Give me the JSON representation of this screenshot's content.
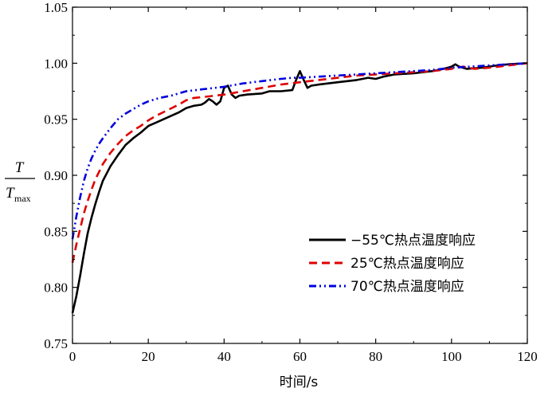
{
  "chart_data": {
    "type": "line",
    "title": "",
    "xlabel": "时间/s",
    "ylabel": {
      "numerator": "T",
      "denominator_main": "T",
      "denominator_sub": "max"
    },
    "xlim": [
      0,
      120
    ],
    "ylim": [
      0.75,
      1.05
    ],
    "x_ticks": [
      "0",
      "20",
      "40",
      "60",
      "80",
      "100",
      "120"
    ],
    "y_ticks": [
      "0.75",
      "0.80",
      "0.85",
      "0.90",
      "0.95",
      "1.00",
      "1.05"
    ],
    "grid": false,
    "legend_position": "lower-right",
    "series": [
      {
        "name": "−55℃热点温度响应",
        "color": "#000000",
        "style": "solid",
        "points": [
          [
            0,
            0.777
          ],
          [
            1,
            0.792
          ],
          [
            2,
            0.81
          ],
          [
            3,
            0.83
          ],
          [
            4,
            0.848
          ],
          [
            5,
            0.862
          ],
          [
            6,
            0.874
          ],
          [
            7,
            0.885
          ],
          [
            8,
            0.895
          ],
          [
            10,
            0.908
          ],
          [
            12,
            0.918
          ],
          [
            14,
            0.927
          ],
          [
            16,
            0.933
          ],
          [
            18,
            0.938
          ],
          [
            20,
            0.944
          ],
          [
            22,
            0.947
          ],
          [
            24,
            0.95
          ],
          [
            26,
            0.953
          ],
          [
            28,
            0.956
          ],
          [
            30,
            0.96
          ],
          [
            32,
            0.962
          ],
          [
            34,
            0.963
          ],
          [
            35,
            0.965
          ],
          [
            36,
            0.968
          ],
          [
            37,
            0.966
          ],
          [
            38,
            0.963
          ],
          [
            39,
            0.966
          ],
          [
            40,
            0.978
          ],
          [
            41,
            0.98
          ],
          [
            42,
            0.972
          ],
          [
            43,
            0.969
          ],
          [
            44,
            0.971
          ],
          [
            46,
            0.972
          ],
          [
            50,
            0.973
          ],
          [
            52,
            0.975
          ],
          [
            55,
            0.975
          ],
          [
            58,
            0.976
          ],
          [
            59,
            0.985
          ],
          [
            60,
            0.993
          ],
          [
            61,
            0.985
          ],
          [
            62,
            0.978
          ],
          [
            63,
            0.98
          ],
          [
            65,
            0.981
          ],
          [
            70,
            0.983
          ],
          [
            75,
            0.985
          ],
          [
            78,
            0.987
          ],
          [
            80,
            0.986
          ],
          [
            82,
            0.988
          ],
          [
            85,
            0.99
          ],
          [
            90,
            0.991
          ],
          [
            95,
            0.993
          ],
          [
            98,
            0.995
          ],
          [
            100,
            0.997
          ],
          [
            101,
            0.999
          ],
          [
            102,
            0.997
          ],
          [
            104,
            0.995
          ],
          [
            108,
            0.996
          ],
          [
            112,
            0.998
          ],
          [
            115,
            0.999
          ],
          [
            120,
            1.0
          ]
        ]
      },
      {
        "name": "25℃热点温度响应",
        "color": "#e00000",
        "style": "dashed",
        "points": [
          [
            0,
            0.822
          ],
          [
            1,
            0.838
          ],
          [
            2,
            0.852
          ],
          [
            3,
            0.866
          ],
          [
            4,
            0.877
          ],
          [
            5,
            0.887
          ],
          [
            6,
            0.896
          ],
          [
            7,
            0.903
          ],
          [
            8,
            0.91
          ],
          [
            10,
            0.92
          ],
          [
            12,
            0.928
          ],
          [
            14,
            0.935
          ],
          [
            16,
            0.94
          ],
          [
            18,
            0.944
          ],
          [
            20,
            0.949
          ],
          [
            22,
            0.953
          ],
          [
            25,
            0.958
          ],
          [
            28,
            0.963
          ],
          [
            30,
            0.967
          ],
          [
            32,
            0.969
          ],
          [
            35,
            0.97
          ],
          [
            40,
            0.972
          ],
          [
            45,
            0.975
          ],
          [
            50,
            0.978
          ],
          [
            55,
            0.981
          ],
          [
            60,
            0.983
          ],
          [
            65,
            0.985
          ],
          [
            70,
            0.987
          ],
          [
            75,
            0.989
          ],
          [
            80,
            0.99
          ],
          [
            85,
            0.991
          ],
          [
            90,
            0.992
          ],
          [
            95,
            0.993
          ],
          [
            100,
            0.995
          ],
          [
            103,
            0.997
          ],
          [
            106,
            0.995
          ],
          [
            110,
            0.996
          ],
          [
            115,
            0.998
          ],
          [
            120,
            1.0
          ]
        ]
      },
      {
        "name": "70℃热点温度响应",
        "color": "#0000e0",
        "style": "dashdotdot",
        "points": [
          [
            0,
            0.843
          ],
          [
            1,
            0.863
          ],
          [
            2,
            0.88
          ],
          [
            3,
            0.895
          ],
          [
            4,
            0.906
          ],
          [
            5,
            0.915
          ],
          [
            6,
            0.922
          ],
          [
            7,
            0.928
          ],
          [
            8,
            0.933
          ],
          [
            10,
            0.942
          ],
          [
            12,
            0.95
          ],
          [
            14,
            0.955
          ],
          [
            16,
            0.959
          ],
          [
            18,
            0.963
          ],
          [
            20,
            0.966
          ],
          [
            23,
            0.969
          ],
          [
            26,
            0.971
          ],
          [
            28,
            0.973
          ],
          [
            30,
            0.975
          ],
          [
            35,
            0.977
          ],
          [
            40,
            0.979
          ],
          [
            45,
            0.982
          ],
          [
            50,
            0.984
          ],
          [
            55,
            0.986
          ],
          [
            58,
            0.987
          ],
          [
            60,
            0.987
          ],
          [
            65,
            0.988
          ],
          [
            70,
            0.989
          ],
          [
            75,
            0.99
          ],
          [
            80,
            0.991
          ],
          [
            85,
            0.992
          ],
          [
            90,
            0.993
          ],
          [
            95,
            0.994
          ],
          [
            100,
            0.996
          ],
          [
            105,
            0.997
          ],
          [
            110,
            0.998
          ],
          [
            115,
            0.999
          ],
          [
            120,
            1.0
          ]
        ]
      }
    ]
  }
}
